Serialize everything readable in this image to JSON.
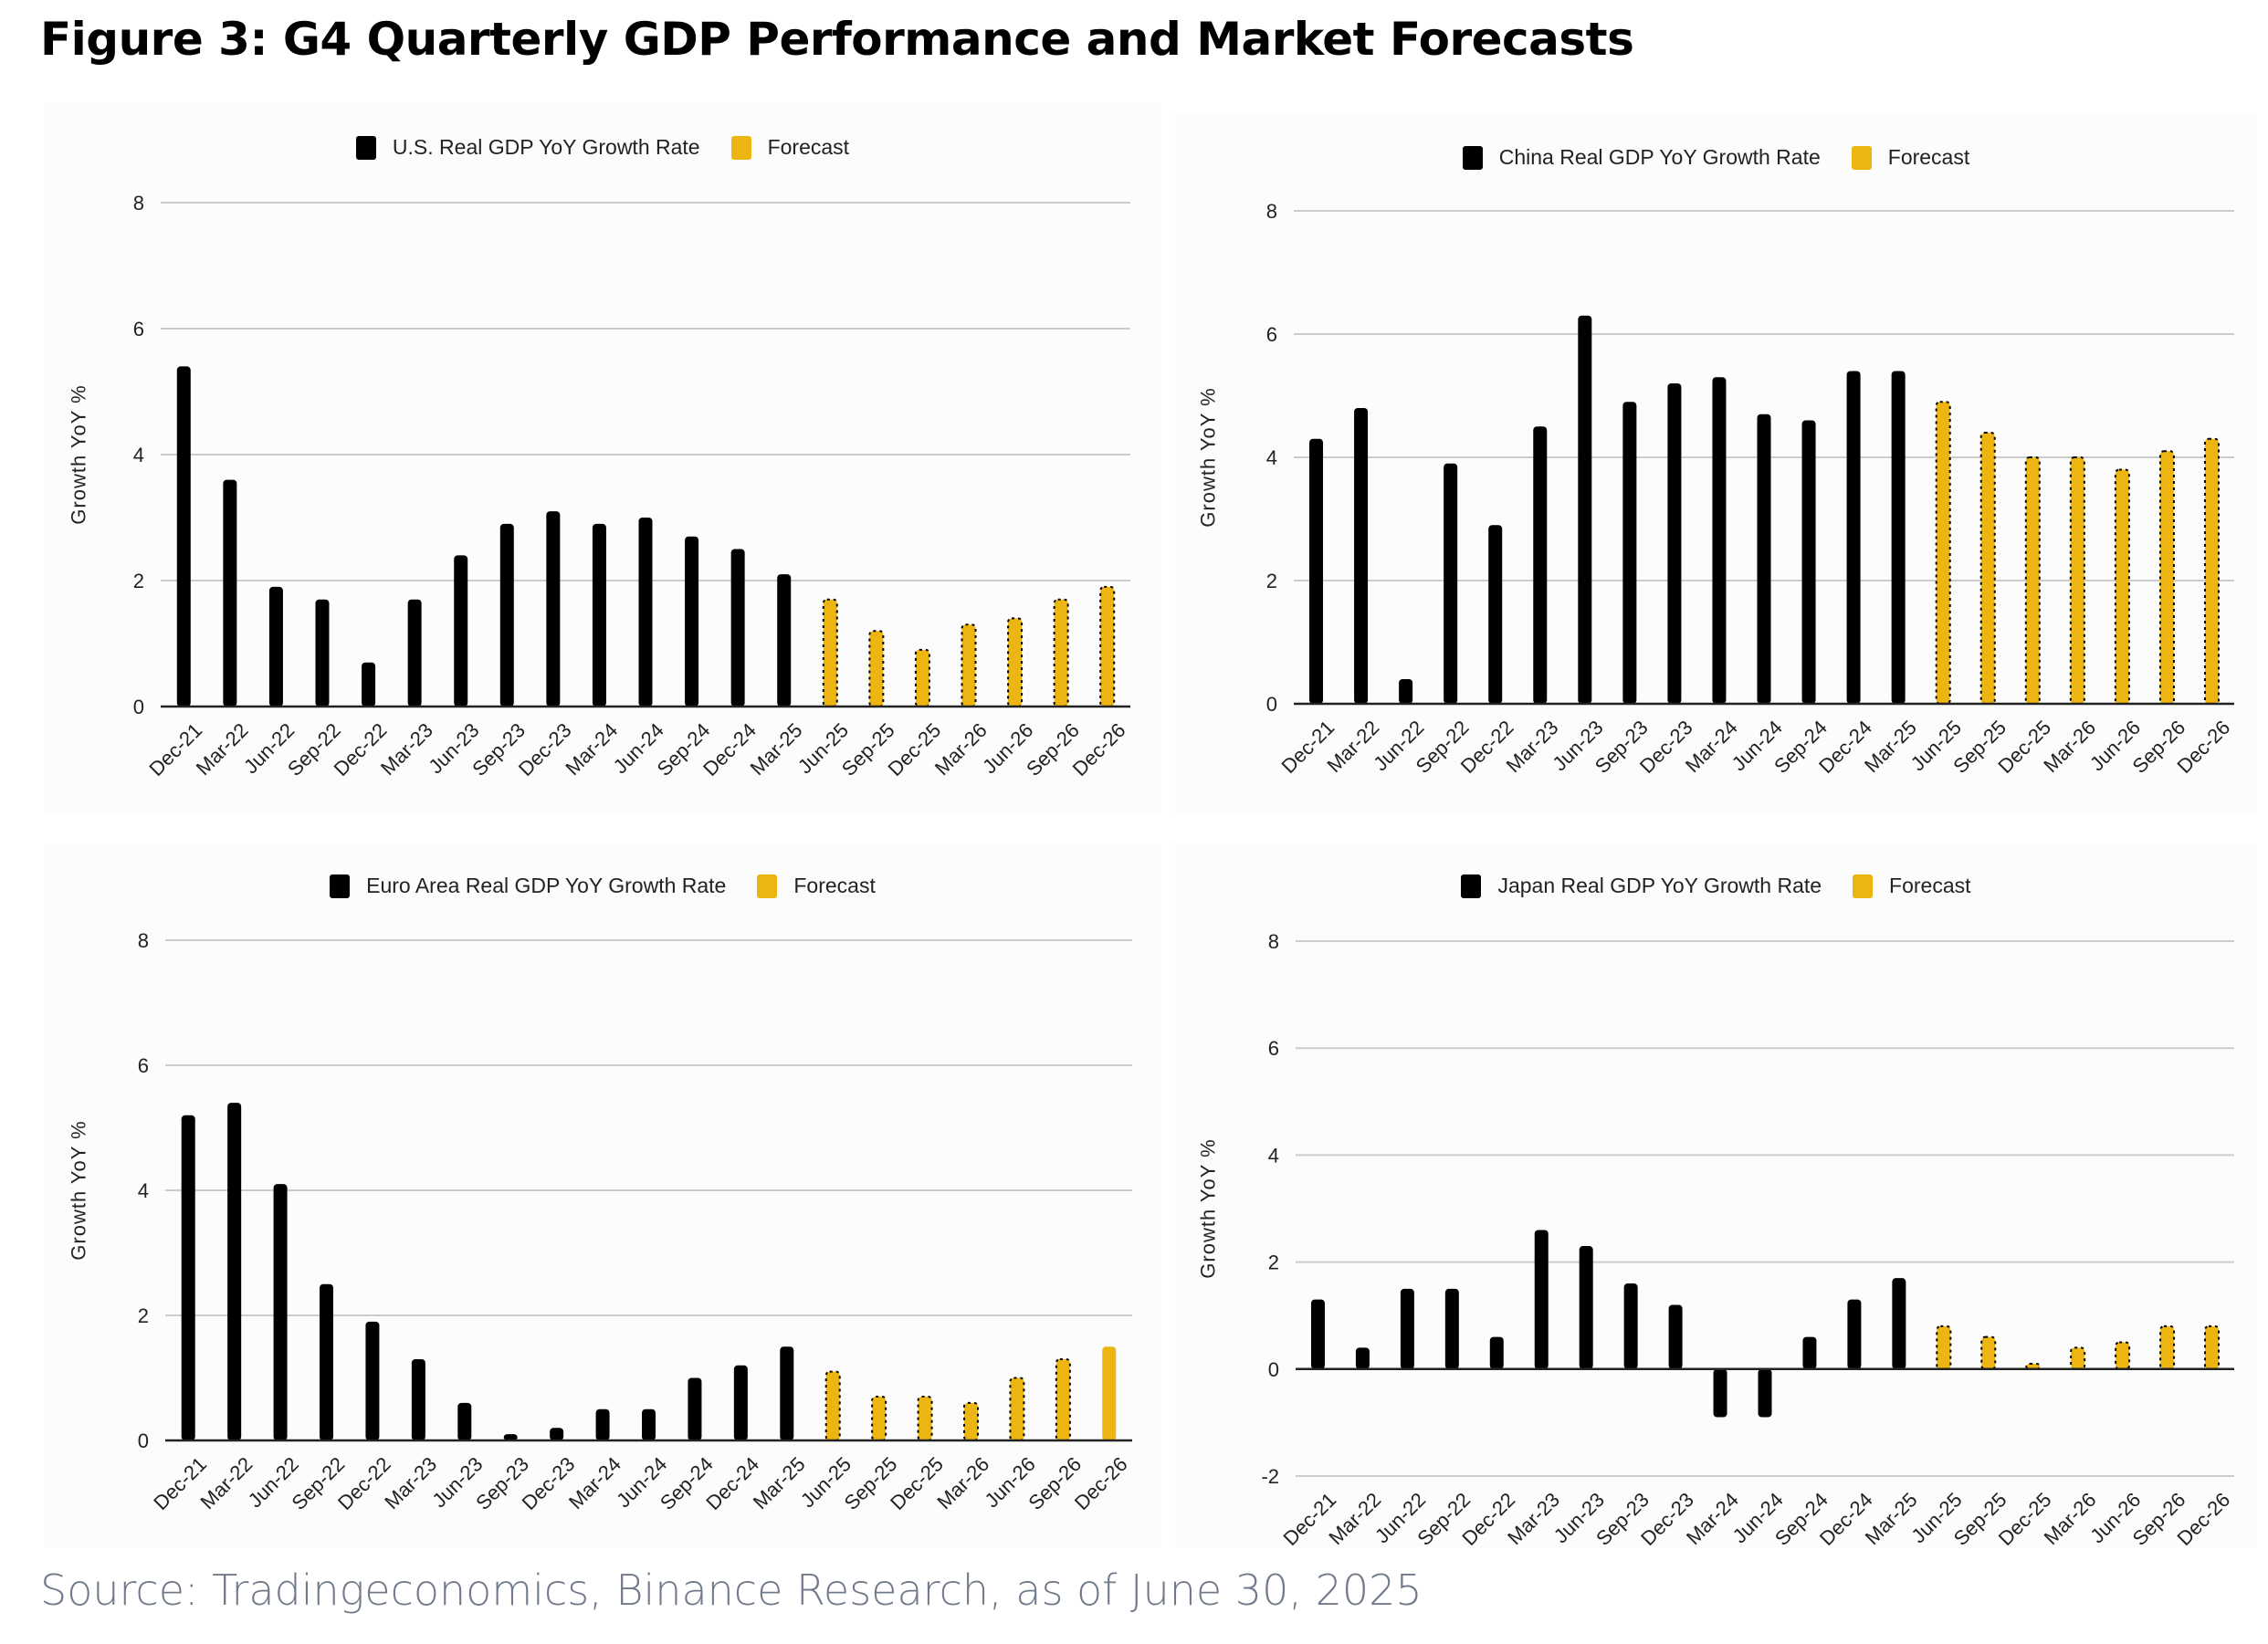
{
  "figure": {
    "title": "Figure 3: G4 Quarterly GDP Performance and Market Forecasts",
    "source": "Source: Tradingeconomics, Binance Research, as of June 30, 2025"
  },
  "colors": {
    "actual": "#000000",
    "forecast": "#EDB511",
    "grid": "#cccccc",
    "source_text": "#707a8a"
  },
  "chart_data": [
    {
      "id": "us",
      "type": "bar",
      "legend": [
        "U.S. Real GDP YoY Growth Rate",
        "Forecast"
      ],
      "legend_placement": "top-center",
      "ylabel": "Growth YoY %",
      "xlabel": "",
      "ylim": [
        0,
        8
      ],
      "yticks": [
        0,
        2,
        4,
        6,
        8
      ],
      "grid": true,
      "categories": [
        "Dec-21",
        "Mar-22",
        "Jun-22",
        "Sep-22",
        "Dec-22",
        "Mar-23",
        "Jun-23",
        "Sep-23",
        "Dec-23",
        "Mar-24",
        "Jun-24",
        "Sep-24",
        "Dec-24",
        "Mar-25",
        "Jun-25",
        "Sep-25",
        "Dec-25",
        "Mar-26",
        "Jun-26",
        "Sep-26",
        "Dec-26"
      ],
      "series": [
        {
          "name": "U.S. Real GDP YoY Growth Rate",
          "values": [
            5.4,
            3.6,
            1.9,
            1.7,
            0.7,
            1.7,
            2.4,
            2.9,
            3.1,
            2.9,
            3.0,
            2.7,
            2.5,
            2.1,
            null,
            null,
            null,
            null,
            null,
            null,
            null
          ]
        },
        {
          "name": "Forecast",
          "values": [
            null,
            null,
            null,
            null,
            null,
            null,
            null,
            null,
            null,
            null,
            null,
            null,
            null,
            null,
            1.7,
            1.2,
            0.9,
            1.3,
            1.4,
            1.7,
            1.9
          ]
        }
      ]
    },
    {
      "id": "china",
      "type": "bar",
      "legend": [
        "China Real GDP YoY Growth Rate",
        "Forecast"
      ],
      "legend_placement": "top-center",
      "ylabel": "Growth YoY %",
      "xlabel": "",
      "ylim": [
        0,
        8
      ],
      "yticks": [
        0,
        2,
        4,
        6,
        8
      ],
      "grid": true,
      "categories": [
        "Dec-21",
        "Mar-22",
        "Jun-22",
        "Sep-22",
        "Dec-22",
        "Mar-23",
        "Jun-23",
        "Sep-23",
        "Dec-23",
        "Mar-24",
        "Jun-24",
        "Sep-24",
        "Dec-24",
        "Mar-25",
        "Jun-25",
        "Sep-25",
        "Dec-25",
        "Mar-26",
        "Jun-26",
        "Sep-26",
        "Dec-26"
      ],
      "series": [
        {
          "name": "China Real GDP YoY Growth Rate",
          "values": [
            4.3,
            4.8,
            0.4,
            3.9,
            2.9,
            4.5,
            6.3,
            4.9,
            5.2,
            5.3,
            4.7,
            4.6,
            5.4,
            5.4,
            null,
            null,
            null,
            null,
            null,
            null,
            null
          ]
        },
        {
          "name": "Forecast",
          "values": [
            null,
            null,
            null,
            null,
            null,
            null,
            null,
            null,
            null,
            null,
            null,
            null,
            null,
            null,
            4.9,
            4.4,
            4.0,
            4.0,
            3.8,
            4.1,
            4.3
          ]
        }
      ]
    },
    {
      "id": "euro",
      "type": "bar",
      "legend": [
        "Euro Area Real GDP YoY Growth Rate",
        "Forecast"
      ],
      "legend_placement": "top-center",
      "ylabel": "Growth YoY %",
      "xlabel": "",
      "ylim": [
        0,
        8
      ],
      "yticks": [
        0,
        2,
        4,
        6,
        8
      ],
      "grid": true,
      "categories": [
        "Dec-21",
        "Mar-22",
        "Jun-22",
        "Sep-22",
        "Dec-22",
        "Mar-23",
        "Jun-23",
        "Sep-23",
        "Dec-23",
        "Mar-24",
        "Jun-24",
        "Sep-24",
        "Dec-24",
        "Mar-25",
        "Jun-25",
        "Sep-25",
        "Dec-25",
        "Mar-26",
        "Jun-26",
        "Sep-26",
        "Dec-26"
      ],
      "series": [
        {
          "name": "Euro Area Real GDP YoY Growth Rate",
          "values": [
            5.2,
            5.4,
            4.1,
            2.5,
            1.9,
            1.3,
            0.6,
            0.1,
            0.2,
            0.5,
            0.5,
            1.0,
            1.2,
            1.5,
            null,
            null,
            null,
            null,
            null,
            null,
            null
          ]
        },
        {
          "name": "Forecast",
          "values": [
            null,
            null,
            null,
            null,
            null,
            null,
            null,
            null,
            null,
            null,
            null,
            null,
            null,
            null,
            1.1,
            0.7,
            0.7,
            0.6,
            1.0,
            1.3,
            1.5
          ]
        }
      ]
    },
    {
      "id": "japan",
      "type": "bar",
      "legend": [
        "Japan Real GDP YoY Growth Rate",
        "Forecast"
      ],
      "legend_placement": "top-center",
      "ylabel": "Growth YoY %",
      "xlabel": "",
      "ylim": [
        -2,
        8
      ],
      "yticks": [
        -2,
        0,
        2,
        4,
        6,
        8
      ],
      "grid": true,
      "categories": [
        "Dec-21",
        "Mar-22",
        "Jun-22",
        "Sep-22",
        "Dec-22",
        "Mar-23",
        "Jun-23",
        "Sep-23",
        "Dec-23",
        "Mar-24",
        "Jun-24",
        "Sep-24",
        "Dec-24",
        "Mar-25",
        "Jun-25",
        "Sep-25",
        "Dec-25",
        "Mar-26",
        "Jun-26",
        "Sep-26",
        "Dec-26"
      ],
      "series": [
        {
          "name": "Japan Real GDP YoY Growth Rate",
          "values": [
            1.3,
            0.4,
            1.5,
            1.5,
            0.6,
            2.6,
            2.3,
            1.6,
            1.2,
            -0.9,
            -0.9,
            0.6,
            1.3,
            1.7,
            null,
            null,
            null,
            null,
            null,
            null,
            null
          ]
        },
        {
          "name": "Forecast",
          "values": [
            null,
            null,
            null,
            null,
            null,
            null,
            null,
            null,
            null,
            null,
            null,
            null,
            null,
            null,
            0.8,
            0.6,
            0.1,
            0.4,
            0.5,
            0.8,
            0.8
          ]
        }
      ]
    }
  ]
}
